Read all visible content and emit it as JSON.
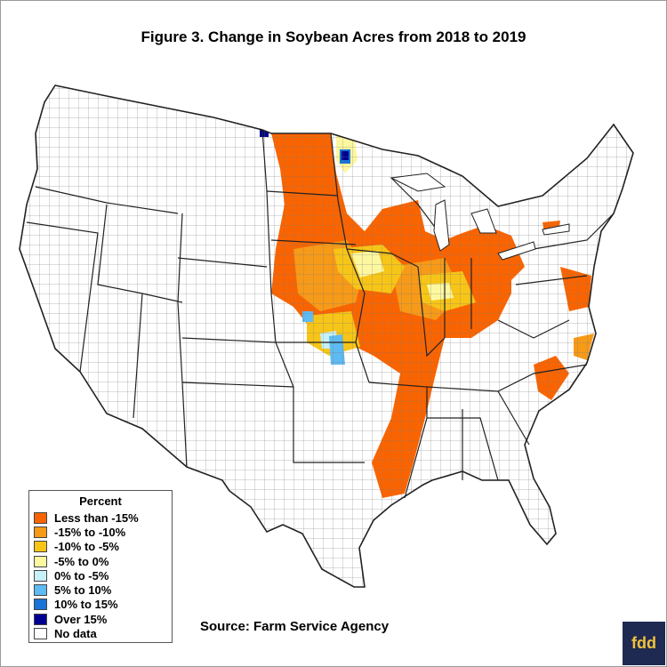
{
  "title": "Figure 3. Change in Soybean Acres from 2018 to 2019",
  "source": "Source: Farm Service Agency",
  "logo_text": "fdd",
  "legend": {
    "title": "Percent",
    "items": [
      {
        "label": "Less than -15%",
        "color": "#fa6400"
      },
      {
        "label": "-15% to -10%",
        "color": "#f79a18"
      },
      {
        "label": "-10% to -5%",
        "color": "#f7c518"
      },
      {
        "label": "-5% to 0%",
        "color": "#fdf8a0"
      },
      {
        "label": "0% to -5%",
        "color": "#c7f1f9"
      },
      {
        "label": "5% to 10%",
        "color": "#5ebbf2"
      },
      {
        "label": "10% to 15%",
        "color": "#1a73d6"
      },
      {
        "label": "Over 15%",
        "color": "#000090"
      },
      {
        "label": "No data",
        "color": "#ffffff"
      }
    ]
  },
  "colors": {
    "county_border": "#555555",
    "state_border": "#222222",
    "logo_background": "#1f2a52",
    "logo_text": "#f2c23c"
  }
}
